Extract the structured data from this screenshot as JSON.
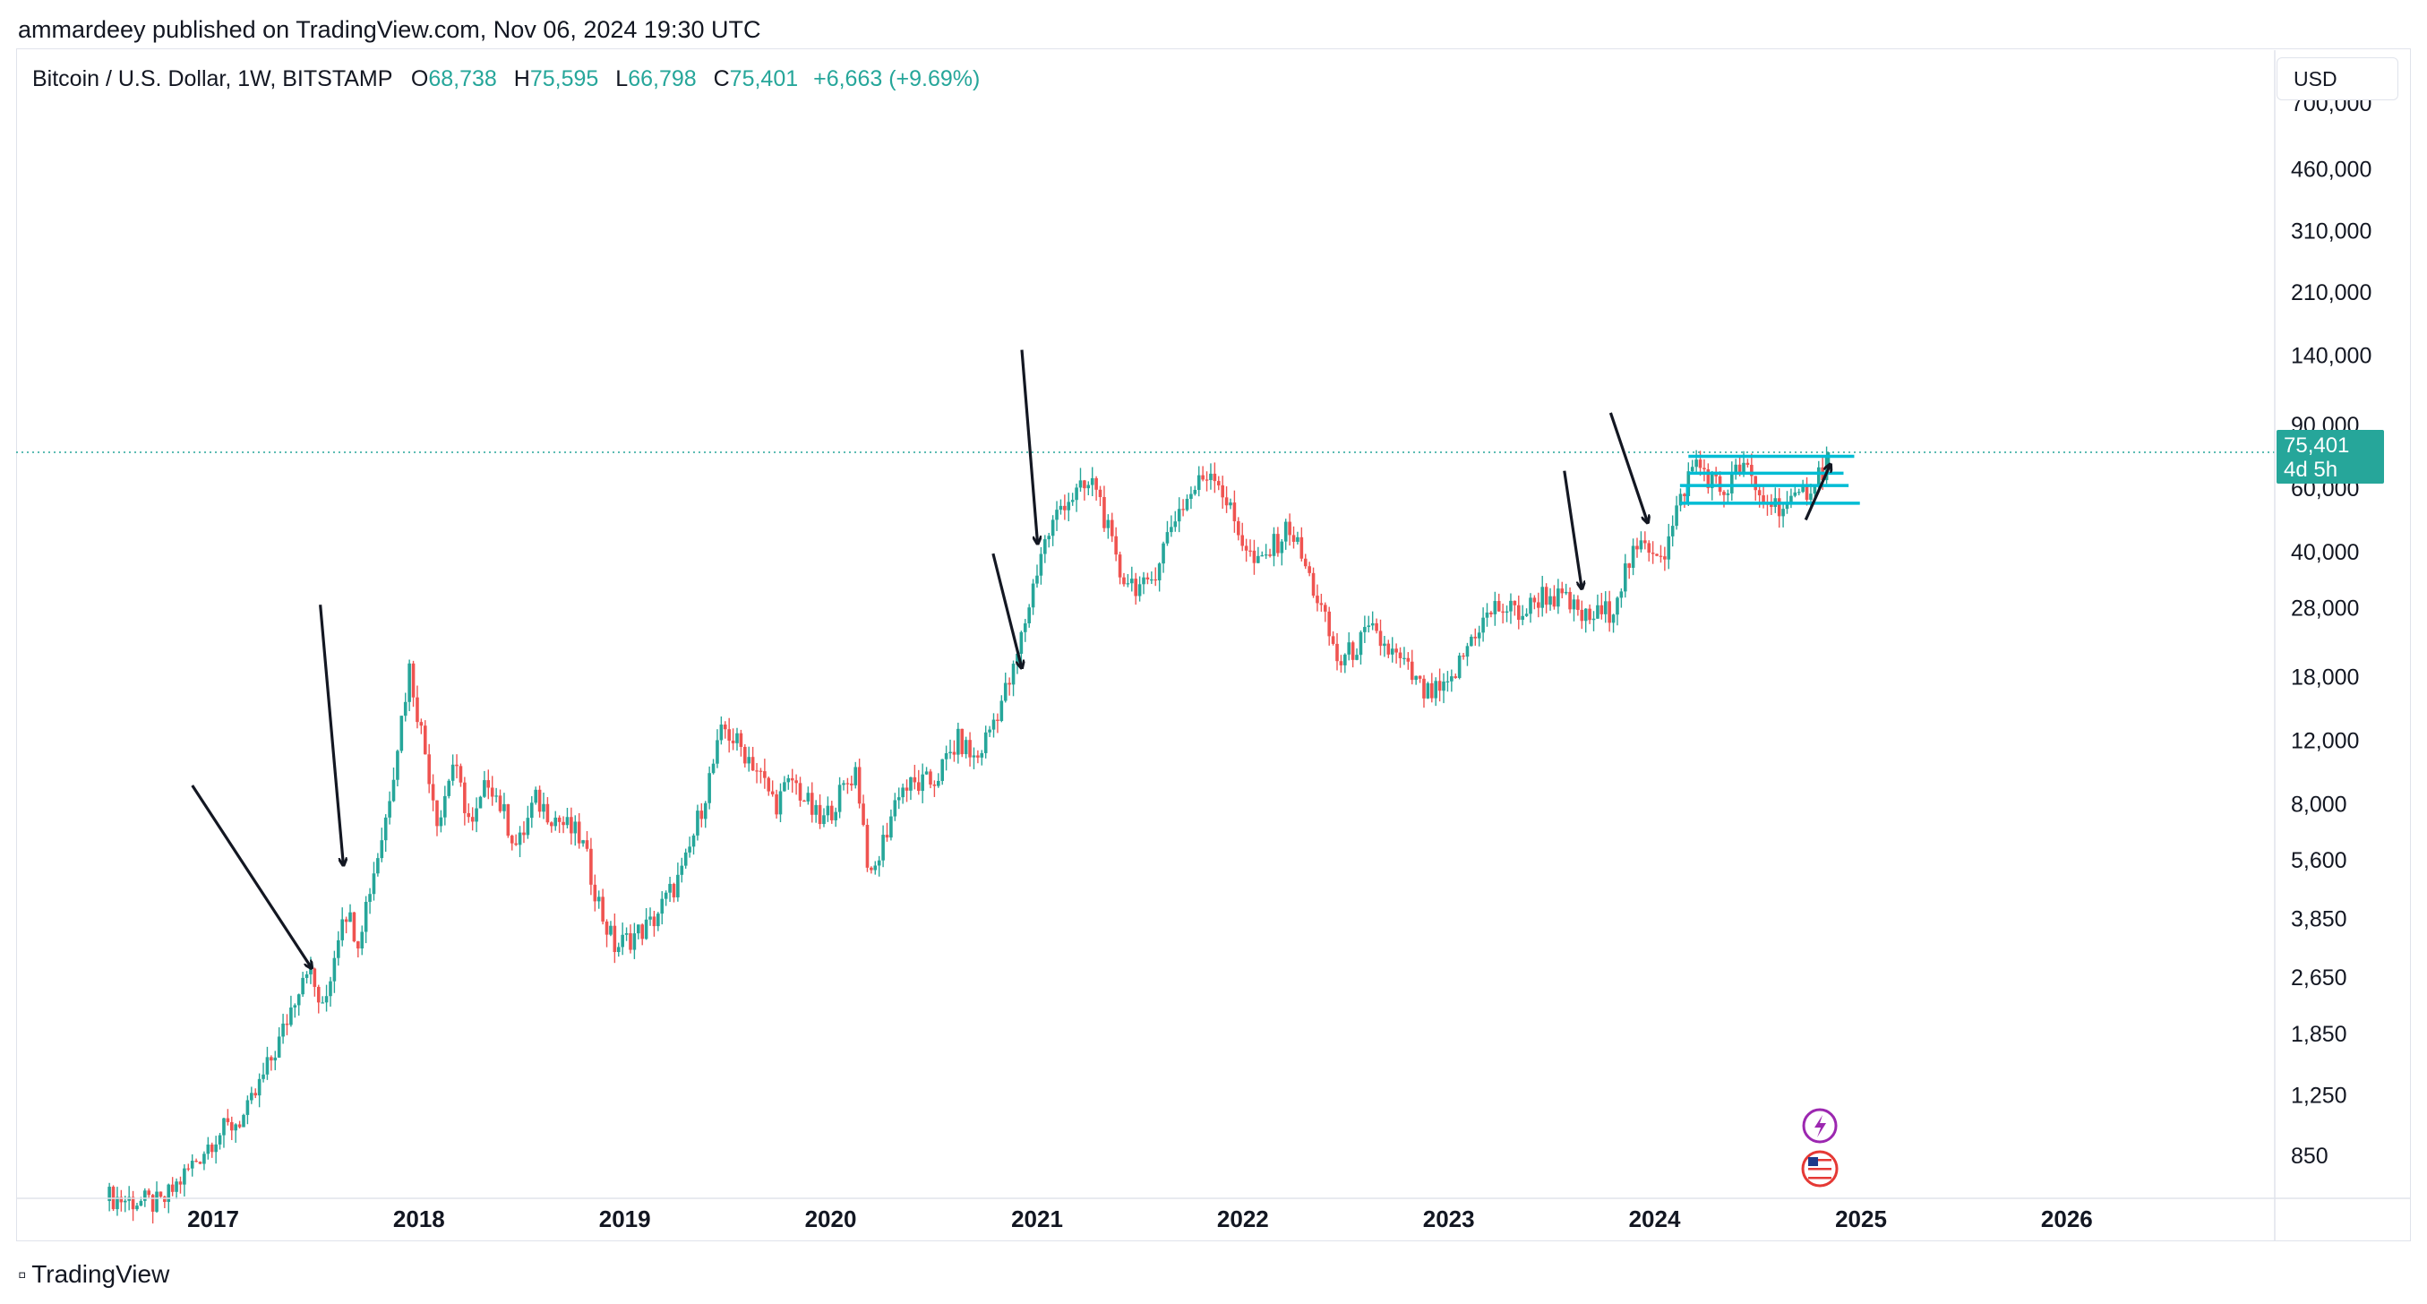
{
  "publisher": {
    "text": "ammardeey published on TradingView.com, Nov 06, 2024 19:30 UTC"
  },
  "header": {
    "symbol": "Bitcoin / U.S. Dollar, 1W, BITSTAMP",
    "o_label": "O",
    "o_value": "68,738",
    "h_label": "H",
    "h_value": "75,595",
    "l_label": "L",
    "l_value": "66,798",
    "c_label": "C",
    "c_value": "75,401",
    "change": "+6,663 (+9.69%)"
  },
  "currency": "USD",
  "price_label": {
    "price": "75,401",
    "countdown": "4d 5h",
    "color": "#26a69a"
  },
  "footer": {
    "brand": "TradingView"
  },
  "icons": [
    "lightning-event-icon",
    "us-flag-event-icon"
  ],
  "colors": {
    "up": "#26a69a",
    "down": "#ef5350",
    "level": "#00bcd4",
    "arrow": "#131722"
  },
  "chart_data": {
    "type": "candlestick",
    "title": "Bitcoin / U.S. Dollar, 1W, BITSTAMP",
    "scale": "log",
    "y_ticks": [
      "700,000",
      "460,000",
      "310,000",
      "210,000",
      "140,000",
      "90,000",
      "60,000",
      "40,000",
      "28,000",
      "18,000",
      "12,000",
      "8,000",
      "5,600",
      "3,850",
      "2,650",
      "1,850",
      "1,250",
      "850"
    ],
    "x_ticks": [
      "2017",
      "2018",
      "2019",
      "2020",
      "2021",
      "2022",
      "2023",
      "2024",
      "2025",
      "2026"
    ],
    "last_price": 75401,
    "price_path": [
      [
        "2016-07-01",
        650
      ],
      [
        "2016-10-01",
        620
      ],
      [
        "2017-01-01",
        950
      ],
      [
        "2017-03-01",
        1100
      ],
      [
        "2017-05-01",
        1800
      ],
      [
        "2017-06-15",
        2900
      ],
      [
        "2017-07-15",
        2100
      ],
      [
        "2017-08-20",
        4200
      ],
      [
        "2017-09-15",
        3400
      ],
      [
        "2017-11-01",
        7000
      ],
      [
        "2017-12-15",
        19000
      ],
      [
        "2018-02-05",
        7000
      ],
      [
        "2018-03-01",
        10500
      ],
      [
        "2018-04-05",
        6800
      ],
      [
        "2018-05-05",
        9500
      ],
      [
        "2018-06-25",
        6000
      ],
      [
        "2018-07-25",
        8200
      ],
      [
        "2018-10-15",
        6400
      ],
      [
        "2018-11-25",
        3800
      ],
      [
        "2018-12-15",
        3200
      ],
      [
        "2019-02-15",
        3700
      ],
      [
        "2019-04-15",
        5200
      ],
      [
        "2019-06-25",
        13000
      ],
      [
        "2019-08-15",
        10500
      ],
      [
        "2019-09-25",
        8000
      ],
      [
        "2019-10-25",
        9300
      ],
      [
        "2019-12-15",
        7000
      ],
      [
        "2020-02-15",
        10000
      ],
      [
        "2020-03-12",
        4800
      ],
      [
        "2020-05-01",
        8800
      ],
      [
        "2020-07-01",
        9200
      ],
      [
        "2020-08-15",
        12000
      ],
      [
        "2020-09-15",
        10500
      ],
      [
        "2020-11-20",
        18500
      ],
      [
        "2021-01-08",
        40000
      ],
      [
        "2021-02-15",
        55000
      ],
      [
        "2021-04-15",
        62000
      ],
      [
        "2021-05-25",
        35000
      ],
      [
        "2021-07-15",
        31000
      ],
      [
        "2021-09-01",
        50000
      ],
      [
        "2021-10-25",
        65000
      ],
      [
        "2021-11-10",
        68000
      ],
      [
        "2021-12-20",
        47000
      ],
      [
        "2022-01-25",
        36000
      ],
      [
        "2022-03-25",
        47000
      ],
      [
        "2022-05-15",
        29000
      ],
      [
        "2022-06-20",
        19500
      ],
      [
        "2022-08-15",
        24000
      ],
      [
        "2022-10-15",
        19200
      ],
      [
        "2022-11-20",
        16000
      ],
      [
        "2022-12-30",
        16500
      ],
      [
        "2023-02-15",
        24000
      ],
      [
        "2023-03-25",
        28000
      ],
      [
        "2023-05-15",
        27000
      ],
      [
        "2023-06-15",
        30500
      ],
      [
        "2023-07-20",
        29500
      ],
      [
        "2023-09-01",
        26000
      ],
      [
        "2023-10-15",
        27500
      ],
      [
        "2023-11-15",
        37000
      ],
      [
        "2023-12-15",
        42000
      ],
      [
        "2024-01-20",
        40000
      ],
      [
        "2024-02-25",
        62000
      ],
      [
        "2024-03-14",
        71000
      ],
      [
        "2024-05-01",
        58000
      ],
      [
        "2024-06-05",
        70000
      ],
      [
        "2024-07-05",
        56000
      ],
      [
        "2024-08-05",
        54000
      ],
      [
        "2024-09-06",
        54000
      ],
      [
        "2024-10-05",
        62000
      ],
      [
        "2024-10-28",
        69000
      ],
      [
        "2024-11-04",
        75401
      ]
    ],
    "horizontal_levels": [
      {
        "price": 73500,
        "from": "2024-03-01",
        "to": "2024-12-20"
      },
      {
        "price": 66000,
        "from": "2024-03-01",
        "to": "2024-12-01"
      },
      {
        "price": 61000,
        "from": "2024-02-15",
        "to": "2024-12-10"
      },
      {
        "price": 54500,
        "from": "2024-02-15",
        "to": "2024-12-30"
      }
    ],
    "arrows": [
      {
        "from": [
          "2016-11-25",
          9000
        ],
        "to": [
          "2017-06-25",
          2800
        ]
      },
      {
        "from": [
          "2017-07-10",
          28500
        ],
        "to": [
          "2017-08-20",
          5400
        ]
      },
      {
        "from": [
          "2020-12-05",
          145000
        ],
        "to": [
          "2021-01-02",
          42000
        ]
      },
      {
        "from": [
          "2020-10-15",
          39500
        ],
        "to": [
          "2020-12-05",
          19000
        ]
      },
      {
        "from": [
          "2023-07-25",
          67000
        ],
        "to": [
          "2023-08-25",
          31500
        ]
      },
      {
        "from": [
          "2023-10-15",
          97000
        ],
        "to": [
          "2023-12-20",
          48000
        ]
      },
      {
        "from": [
          "2024-09-25",
          49000
        ],
        "to": [
          "2024-11-08",
          70000
        ]
      }
    ]
  }
}
